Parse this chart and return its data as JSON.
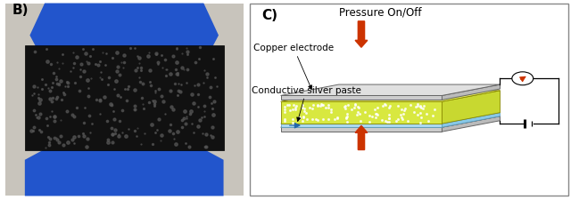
{
  "fig_width": 6.4,
  "fig_height": 2.26,
  "dpi": 100,
  "panel_b_label": "B)",
  "panel_c_label": "C)",
  "label_fontsize": 11,
  "label_fontweight": "bold",
  "pressure_text": "Pressure On/Off",
  "copper_text": "Copper electrode",
  "silver_text": "Conductive silver paste",
  "pressure_fontsize": 9,
  "label_text_fontsize": 8,
  "photo_bg_color": "#c8c4bc",
  "glove_color": "#2255cc",
  "foam_fill_color": "#111111",
  "foam_dot_color": "#333333",
  "top_plate_face": "#cccccc",
  "top_plate_top": "#e0e0e0",
  "top_plate_edge": "#666666",
  "bottom_plate_face": "#cccccc",
  "bottom_plate_top": "#e0e0e0",
  "bottom_plate_edge": "#666666",
  "foam_color": "#d8e840",
  "foam_top_color": "#e8f060",
  "silver_paste_color": "#aad8f0",
  "silver_paste_top": "#c4eaf8",
  "arrow_color": "#cc3300",
  "ammeter_arrow_color": "#cc3300",
  "circuit_color": "#000000",
  "bg_color": "#ffffff",
  "border_color": "#888888"
}
